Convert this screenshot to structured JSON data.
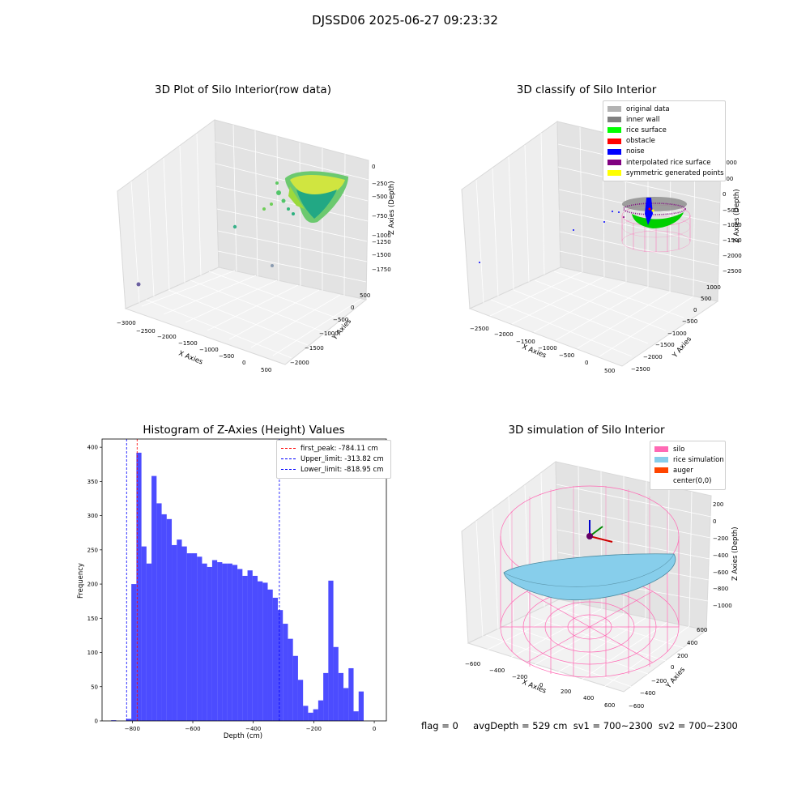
{
  "suptitle": "DJSSD06 2025-06-27 09:23:32",
  "plots": {
    "raw": {
      "title": "3D Plot of Silo Interior(row data)",
      "xlabel": "X Axies",
      "ylabel": "Y Axies",
      "zlabel": "Z Axies (Depth)",
      "xticks": [
        "−3000",
        "−2500",
        "−2000",
        "−1500",
        "−1000",
        "−500",
        "0",
        "500"
      ],
      "yticks": [
        "500",
        "0",
        "−500",
        "−1000",
        "−1500",
        "−2000"
      ],
      "zticks": [
        "0",
        "−250",
        "−500",
        "−750",
        "−1000",
        "−1250",
        "−1500",
        "−1750"
      ]
    },
    "classify": {
      "title": "3D classify of Silo Interior",
      "xlabel": "X Axies",
      "ylabel": "Y Axies",
      "zlabel": "Z Axies (Depth)",
      "xticks": [
        "−2500",
        "−2000",
        "−1500",
        "−1000",
        "−500",
        "0",
        "500"
      ],
      "yticks": [
        "1000",
        "500",
        "0",
        "−500",
        "−1000",
        "−1500",
        "−2000",
        "−2500"
      ],
      "zticks": [
        "1000",
        "500",
        "0",
        "−500",
        "−1000",
        "−1500",
        "−2000",
        "−2500"
      ],
      "legend": [
        {
          "label": "original data",
          "color": "#b3b3b3"
        },
        {
          "label": "inner wall",
          "color": "#808080"
        },
        {
          "label": "rice surface",
          "color": "#00ff00"
        },
        {
          "label": "obstacle",
          "color": "#ff0000"
        },
        {
          "label": "noise",
          "color": "#0000ff"
        },
        {
          "label": "interpolated rice surface",
          "color": "#800080"
        },
        {
          "label": "symmetric generated points",
          "color": "#ffff00"
        }
      ]
    },
    "simulation": {
      "title": "3D simulation of Silo Interior",
      "xlabel": "X Axies",
      "ylabel": "Y Axies",
      "zlabel": "Z Axies (Depth)",
      "xticks": [
        "−600",
        "−400",
        "−200",
        "0",
        "200",
        "400",
        "600"
      ],
      "yticks": [
        "600",
        "400",
        "200",
        "0",
        "−200",
        "−400",
        "−600"
      ],
      "zticks": [
        "200",
        "0",
        "−200",
        "−400",
        "−600",
        "−800",
        "−1000"
      ],
      "legend": [
        {
          "label": "silo",
          "color": "#ff69b4"
        },
        {
          "label": "rice simulation",
          "color": "#87ceeb"
        },
        {
          "label": "auger",
          "color": "#ff4500"
        },
        {
          "label": "center(0,0)",
          "color": "#ffffff"
        }
      ]
    }
  },
  "chart_data": [
    {
      "type": "histogram",
      "title": "Histogram of Z-Axies (Height) Values",
      "xlabel": "Depth (cm)",
      "ylabel": "Frequency",
      "xlim": [
        -900,
        40
      ],
      "ylim": [
        0,
        412
      ],
      "xticks": [
        -800,
        -600,
        -400,
        -200,
        0
      ],
      "xtick_labels": [
        "−800",
        "−600",
        "−400",
        "−200",
        "0"
      ],
      "yticks": [
        0,
        50,
        100,
        150,
        200,
        250,
        300,
        350,
        400
      ],
      "bar_color": "#0000ff",
      "bin_edges": [
        -870,
        -853.3,
        -836.6,
        -819.9,
        -803.2,
        -786.5,
        -769.8,
        -753.1,
        -736.4,
        -719.7,
        -703,
        -686.3,
        -669.6,
        -652.9,
        -636.2,
        -619.5,
        -602.8,
        -586.1,
        -569.4,
        -552.7,
        -536,
        -519.3,
        -502.6,
        -485.9,
        -469.2,
        -452.5,
        -435.8,
        -419.1,
        -402.4,
        -385.7,
        -369,
        -352.3,
        -335.6,
        -318.9,
        -302.2,
        -285.5,
        -268.8,
        -252.1,
        -235.4,
        -218.7,
        -202,
        -185.3,
        -168.6,
        -151.9,
        -135.2,
        -118.5,
        -101.8,
        -85.1,
        -68.4,
        -51.7,
        -35,
        -18.3,
        -1.6
      ],
      "counts": [
        1,
        0,
        0,
        3,
        200,
        392,
        255,
        230,
        358,
        318,
        302,
        295,
        257,
        265,
        255,
        245,
        245,
        240,
        230,
        225,
        235,
        232,
        230,
        230,
        228,
        222,
        212,
        220,
        212,
        204,
        202,
        192,
        180,
        162,
        142,
        120,
        95,
        60,
        22,
        12,
        17,
        30,
        70,
        205,
        108,
        70,
        48,
        77,
        14,
        43,
        0,
        0
      ],
      "vlines": [
        {
          "x": -784.11,
          "label": "first_peak: -784.11 cm",
          "color": "#ff0000"
        },
        {
          "x": -313.82,
          "label": "Upper_limit: -313.82 cm",
          "color": "#0000ff"
        },
        {
          "x": -818.95,
          "label": "Lower_limit: -818.95 cm",
          "color": "#0000ff"
        }
      ],
      "legend_position": "upper right"
    }
  ],
  "status": {
    "flag": "flag = 0",
    "avgDepth": "avgDepth = 529 cm",
    "sv1": "sv1 = 700~2300",
    "sv2": "sv2 = 700~2300"
  }
}
